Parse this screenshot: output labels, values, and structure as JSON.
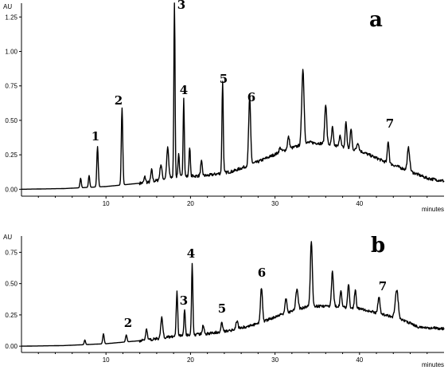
{
  "chart_data": [
    {
      "type": "line",
      "panel_label": "a",
      "ylabel": "AU",
      "xlabel": "minutes",
      "xlim": [
        0,
        50
      ],
      "ylim": [
        -0.05,
        1.35
      ],
      "x_ticks": [
        "10",
        "20",
        "30",
        "40"
      ],
      "y_ticks": [
        "0.00",
        "0.25",
        "0.50",
        "0.75",
        "1.00",
        "1.25"
      ],
      "y_tick_values": [
        0,
        0.25,
        0.5,
        0.75,
        1.0,
        1.25
      ],
      "baseline": [
        [
          0,
          0.0
        ],
        [
          5,
          0.005
        ],
        [
          10,
          0.02
        ],
        [
          15,
          0.05
        ],
        [
          18,
          0.09
        ],
        [
          22,
          0.1
        ],
        [
          25,
          0.13
        ],
        [
          28,
          0.2
        ],
        [
          31,
          0.28
        ],
        [
          34,
          0.34
        ],
        [
          36,
          0.33
        ],
        [
          40,
          0.28
        ],
        [
          43,
          0.2
        ],
        [
          46,
          0.13
        ],
        [
          48,
          0.08
        ],
        [
          50,
          0.06
        ]
      ],
      "peaks": [
        {
          "x": 7.0,
          "y": 0.08,
          "w": 0.2
        },
        {
          "x": 8.0,
          "y": 0.1,
          "w": 0.2
        },
        {
          "x": 9.0,
          "y": 0.31,
          "w": 0.22,
          "label": "1"
        },
        {
          "x": 11.9,
          "y": 0.59,
          "w": 0.22,
          "label": "2"
        },
        {
          "x": 14.6,
          "y": 0.09,
          "w": 0.25
        },
        {
          "x": 15.4,
          "y": 0.14,
          "w": 0.25
        },
        {
          "x": 16.5,
          "y": 0.18,
          "w": 0.3
        },
        {
          "x": 17.3,
          "y": 0.3,
          "w": 0.3
        },
        {
          "x": 18.1,
          "y": 1.36,
          "w": 0.18,
          "label": "3"
        },
        {
          "x": 18.6,
          "y": 0.26,
          "w": 0.2
        },
        {
          "x": 19.2,
          "y": 0.67,
          "w": 0.18,
          "label": "4"
        },
        {
          "x": 19.9,
          "y": 0.31,
          "w": 0.2
        },
        {
          "x": 21.3,
          "y": 0.2,
          "w": 0.25
        },
        {
          "x": 23.8,
          "y": 0.78,
          "w": 0.2,
          "label": "5"
        },
        {
          "x": 27.0,
          "y": 0.66,
          "w": 0.3,
          "label": "6"
        },
        {
          "x": 30.6,
          "y": 0.3,
          "w": 0.3
        },
        {
          "x": 31.6,
          "y": 0.38,
          "w": 0.3
        },
        {
          "x": 33.3,
          "y": 0.87,
          "w": 0.35
        },
        {
          "x": 36.0,
          "y": 0.62,
          "w": 0.3
        },
        {
          "x": 36.8,
          "y": 0.45,
          "w": 0.25
        },
        {
          "x": 37.7,
          "y": 0.4,
          "w": 0.25
        },
        {
          "x": 38.4,
          "y": 0.49,
          "w": 0.25
        },
        {
          "x": 39.0,
          "y": 0.44,
          "w": 0.25
        },
        {
          "x": 39.8,
          "y": 0.34,
          "w": 0.3
        },
        {
          "x": 43.4,
          "y": 0.35,
          "w": 0.25,
          "label": "7"
        },
        {
          "x": 45.8,
          "y": 0.3,
          "w": 0.35
        }
      ]
    },
    {
      "type": "line",
      "panel_label": "b",
      "ylabel": "AU",
      "xlabel": "minutes",
      "xlim": [
        0,
        50
      ],
      "ylim": [
        -0.05,
        0.88
      ],
      "x_ticks": [
        "10",
        "20",
        "30",
        "40"
      ],
      "y_ticks": [
        "0.00",
        "0.25",
        "0.50",
        "0.75"
      ],
      "y_tick_values": [
        0,
        0.25,
        0.5,
        0.75
      ],
      "baseline": [
        [
          0,
          0.0
        ],
        [
          5,
          0.005
        ],
        [
          10,
          0.02
        ],
        [
          15,
          0.05
        ],
        [
          18,
          0.08
        ],
        [
          22,
          0.1
        ],
        [
          25,
          0.13
        ],
        [
          28,
          0.18
        ],
        [
          31,
          0.26
        ],
        [
          34,
          0.32
        ],
        [
          37,
          0.32
        ],
        [
          40,
          0.3
        ],
        [
          43,
          0.25
        ],
        [
          45.5,
          0.2
        ],
        [
          47,
          0.15
        ],
        [
          50,
          0.14
        ]
      ],
      "peaks": [
        {
          "x": 7.5,
          "y": 0.05,
          "w": 0.2
        },
        {
          "x": 9.7,
          "y": 0.1,
          "w": 0.22
        },
        {
          "x": 12.4,
          "y": 0.09,
          "w": 0.22,
          "label": "2"
        },
        {
          "x": 14.8,
          "y": 0.14,
          "w": 0.25
        },
        {
          "x": 16.6,
          "y": 0.23,
          "w": 0.3
        },
        {
          "x": 18.4,
          "y": 0.43,
          "w": 0.22
        },
        {
          "x": 19.3,
          "y": 0.3,
          "w": 0.2,
          "label": "3"
        },
        {
          "x": 20.2,
          "y": 0.66,
          "w": 0.2,
          "label": "4"
        },
        {
          "x": 21.5,
          "y": 0.17,
          "w": 0.25
        },
        {
          "x": 23.7,
          "y": 0.2,
          "w": 0.25,
          "label": "5"
        },
        {
          "x": 25.5,
          "y": 0.2,
          "w": 0.3
        },
        {
          "x": 28.4,
          "y": 0.47,
          "w": 0.3,
          "label": "6"
        },
        {
          "x": 31.3,
          "y": 0.38,
          "w": 0.3
        },
        {
          "x": 32.6,
          "y": 0.46,
          "w": 0.35
        },
        {
          "x": 34.3,
          "y": 0.84,
          "w": 0.3
        },
        {
          "x": 36.8,
          "y": 0.6,
          "w": 0.3
        },
        {
          "x": 37.8,
          "y": 0.44,
          "w": 0.25
        },
        {
          "x": 38.7,
          "y": 0.5,
          "w": 0.25
        },
        {
          "x": 39.5,
          "y": 0.45,
          "w": 0.25
        },
        {
          "x": 42.3,
          "y": 0.4,
          "w": 0.3,
          "label": "7"
        },
        {
          "x": 44.4,
          "y": 0.45,
          "w": 0.45
        }
      ]
    }
  ]
}
